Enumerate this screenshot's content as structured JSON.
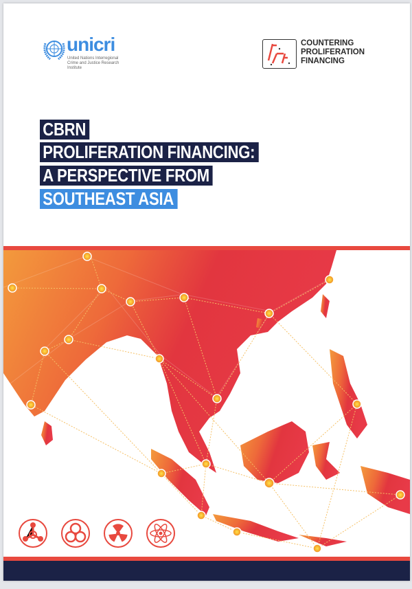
{
  "logos": {
    "unicri": {
      "wordmark": "unicri",
      "subtitle": "United Nations Interregional Crime and Justice Research Institute"
    },
    "cpf": {
      "mark": "CPF",
      "text_lines": [
        "COUNTERING",
        "PROLIFERATION",
        "FINANCING"
      ]
    }
  },
  "title": {
    "lines": [
      "CBRN",
      "PROLIFERATION FINANCING:",
      "A PERSPECTIVE FROM",
      "SOUTHEAST ASIA"
    ]
  },
  "hazard_icons": [
    "chemical-icon",
    "biohazard-icon",
    "radiation-icon",
    "atom-icon"
  ],
  "colors": {
    "navy": "#1b2246",
    "blue": "#3d8de0",
    "red": "#e8493f",
    "orange": "#f39a3c"
  }
}
